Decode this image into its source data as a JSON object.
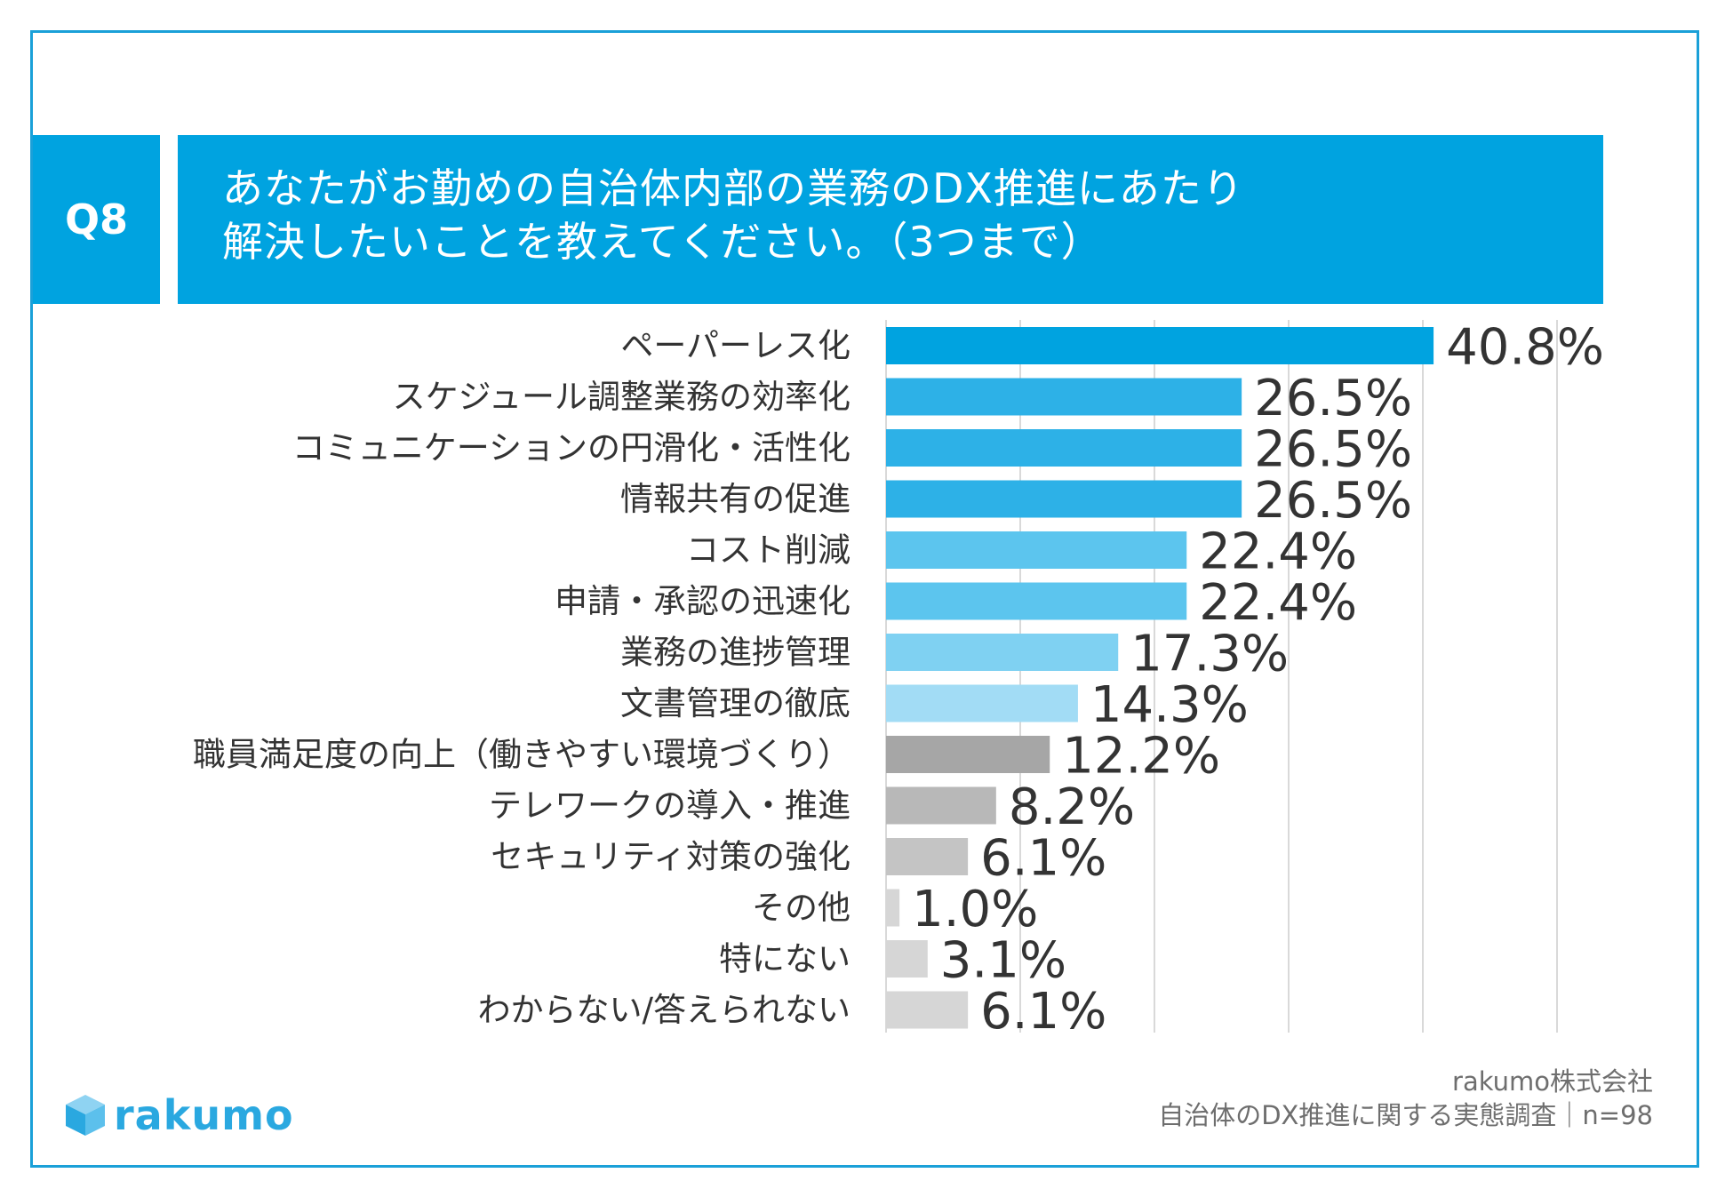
{
  "header": {
    "question_no": "Q8",
    "title_line1": "あなたがお勤めの自治体内部の業務のDX推進にあたり",
    "title_line2": "解決したいことを教えてください。（3つまで）"
  },
  "chart_data": {
    "type": "bar",
    "orientation": "horizontal",
    "title": "あなたがお勤めの自治体内部の業務のDX推進にあたり解決したいことを教えてください。（3つまで）",
    "xlabel": "",
    "ylabel": "",
    "xlim": [
      0,
      50
    ],
    "grid": true,
    "categories": [
      "ペーパーレス化",
      "スケジュール調整業務の効率化",
      "コミュニケーションの円滑化・活性化",
      "情報共有の促進",
      "コスト削減",
      "申請・承認の迅速化",
      "業務の進捗管理",
      "文書管理の徹底",
      "職員満足度の向上（働きやすい環境づくり）",
      "テレワークの導入・推進",
      "セキュリティ対策の強化",
      "その他",
      "特にない",
      "わからない/答えられない"
    ],
    "values": [
      40.8,
      26.5,
      26.5,
      26.5,
      22.4,
      22.4,
      17.3,
      14.3,
      12.2,
      8.2,
      6.1,
      1.0,
      3.1,
      6.1
    ],
    "value_labels": [
      "40.8%",
      "26.5%",
      "26.5%",
      "26.5%",
      "22.4%",
      "22.4%",
      "17.3%",
      "14.3%",
      "12.2%",
      "8.2%",
      "6.1%",
      "1.0%",
      "3.1%",
      "6.1%"
    ],
    "colors": [
      "#00a3e0",
      "#2db1e7",
      "#2db1e7",
      "#2db1e7",
      "#5cc5ee",
      "#5cc5ee",
      "#7fd1f2",
      "#a2dcf5",
      "#a6a6a6",
      "#b8b8b8",
      "#c4c4c4",
      "#d6d6d6",
      "#d6d6d6",
      "#d6d6d6"
    ]
  },
  "branding": {
    "logo_text": "rakumo",
    "logo_color": "#2aa8e0"
  },
  "footer": {
    "company": "rakumo株式会社",
    "survey": "自治体のDX推進に関する実態調査｜n=98"
  }
}
